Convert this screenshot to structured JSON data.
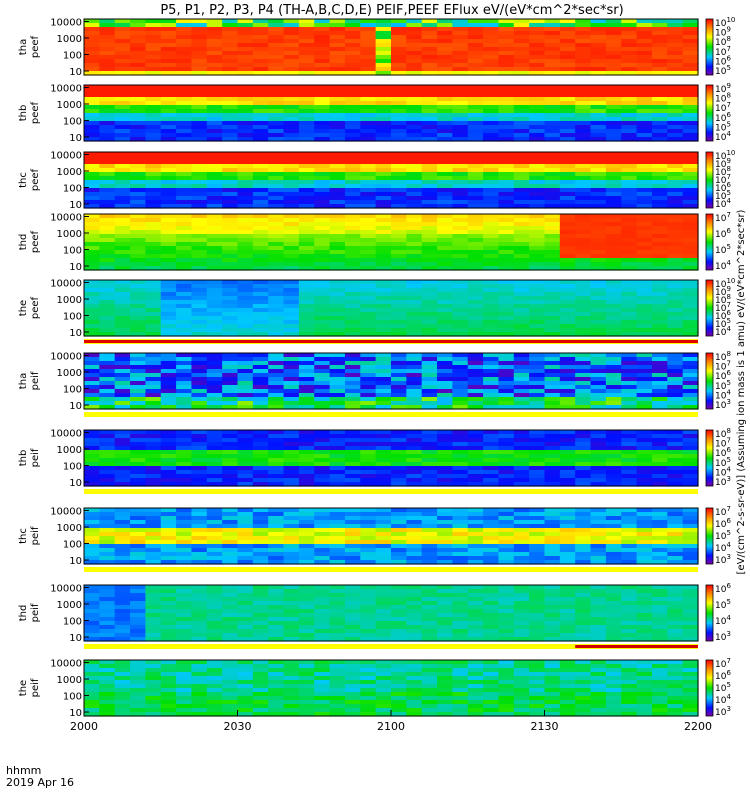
{
  "chart_data": {
    "type": "heatmap",
    "title": "P5, P1, P2, P3, P4 (TH-A,B,C,D,E) PEIF,PEEF EFlux eV/(eV*cm^2*sec*sr)",
    "x_ticks": [
      "2000",
      "2030",
      "2100",
      "2130",
      "2200"
    ],
    "x_label_line1": "hhmm",
    "x_label_line2": "2019 Apr 16",
    "y_tick_labels": [
      "10",
      "100",
      "1000",
      "10000"
    ],
    "colorbar_label": "[eV/(cm^2-s-sr-eV)] (Assuming ion mass is 1 amu) eV/(eV*cm^2*sec*sr)",
    "panels": [
      {
        "name": "tha peef",
        "colorbar_exponents": [
          5,
          6,
          7,
          8,
          9,
          10
        ],
        "pattern": "hot"
      },
      {
        "name": "thb peef",
        "colorbar_exponents": [
          4,
          5,
          6,
          7,
          8,
          9
        ],
        "pattern": "layered"
      },
      {
        "name": "thc peef",
        "colorbar_exponents": [
          4,
          5,
          6,
          7,
          8,
          9,
          10
        ],
        "pattern": "layered"
      },
      {
        "name": "thd peef",
        "colorbar_exponents": [
          4,
          5,
          6,
          7
        ],
        "pattern": "warm"
      },
      {
        "name": "the peef",
        "colorbar_exponents": [
          4,
          5,
          6,
          7,
          8,
          9,
          10
        ],
        "pattern": "cool"
      },
      {
        "name": "tha peif",
        "colorbar_exponents": [
          3,
          4,
          5,
          6,
          7,
          8
        ],
        "pattern": "ion_dark"
      },
      {
        "name": "thb peif",
        "colorbar_exponents": [
          3,
          4,
          5,
          6,
          7,
          8
        ],
        "pattern": "ion_band"
      },
      {
        "name": "thc peif",
        "colorbar_exponents": [
          3,
          4,
          5,
          6,
          7
        ],
        "pattern": "ion_band2"
      },
      {
        "name": "thd peif",
        "colorbar_exponents": [
          3,
          4,
          5,
          6
        ],
        "pattern": "ion_flat"
      },
      {
        "name": "the peif",
        "colorbar_exponents": [
          3,
          4,
          5,
          6,
          7
        ],
        "pattern": "ion_flat2"
      }
    ]
  }
}
